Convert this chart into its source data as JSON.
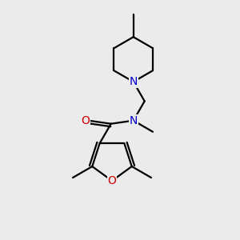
{
  "bg_color": "#ebebeb",
  "bond_color": "#000000",
  "nitrogen_color": "#0000cc",
  "oxygen_color": "#cc0000",
  "line_width": 1.6,
  "font_size": 10,
  "xlim": [
    0,
    300
  ],
  "ylim": [
    0,
    300
  ]
}
